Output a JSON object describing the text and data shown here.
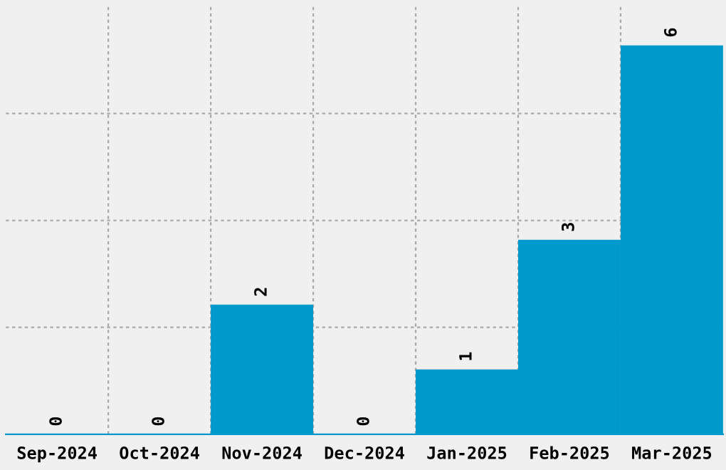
{
  "chart_data": {
    "type": "bar",
    "categories": [
      "Sep-2024",
      "Oct-2024",
      "Nov-2024",
      "Dec-2024",
      "Jan-2025",
      "Feb-2025",
      "Mar-2025"
    ],
    "values": [
      0,
      0,
      2,
      0,
      1,
      3,
      6
    ],
    "color": "#0099cc",
    "ylim": [
      0,
      6.6
    ],
    "yticks": [
      {
        "value": 1.65,
        "label": null
      },
      {
        "value": 3.3,
        "label": null
      },
      {
        "value": 4.95,
        "label": null
      }
    ],
    "data_labels": true,
    "grid": true,
    "tick_labels": "x"
  }
}
